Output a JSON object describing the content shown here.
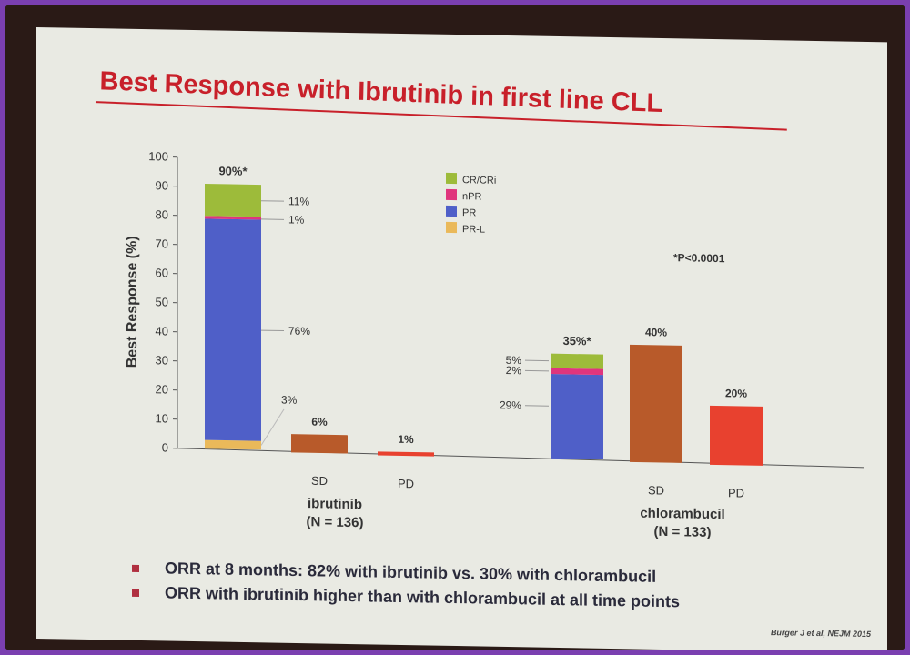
{
  "slide": {
    "title": "Best Response with Ibrutinib in first line CLL",
    "bullets": [
      "ORR at 8 months: 82% with ibrutinib vs. 30% with chlorambucil",
      "ORR with ibrutinib higher than with chlorambucil at all time points"
    ],
    "citation": "Burger J et al, NEJM 2015"
  },
  "chart_data": {
    "type": "bar",
    "title": "",
    "ylabel": "Best Response (%)",
    "ylim": [
      0,
      100
    ],
    "yticks": [
      0,
      10,
      20,
      30,
      40,
      50,
      60,
      70,
      80,
      90,
      100
    ],
    "annotation": "*P<0.0001",
    "legend": {
      "placement": "top-center",
      "entries": [
        {
          "name": "CR/CRi",
          "color": "#9dbb3a"
        },
        {
          "name": "nPR",
          "color": "#e0357d"
        },
        {
          "name": "PR",
          "color": "#4f5fc8"
        },
        {
          "name": "PR-L",
          "color": "#eab95a"
        }
      ]
    },
    "groups": [
      {
        "name": "ibrutinib",
        "n": "(N = 136)",
        "bars": [
          {
            "category": "",
            "label": "90%*",
            "stack": [
              {
                "series": "PR-L",
                "value": 3,
                "label": "3%"
              },
              {
                "series": "PR",
                "value": 76,
                "label": "76%"
              },
              {
                "series": "nPR",
                "value": 1,
                "label": "1%"
              },
              {
                "series": "CR/CRi",
                "value": 11,
                "label": "11%"
              }
            ]
          },
          {
            "category": "SD",
            "value": 6,
            "label": "6%",
            "color": "#b85a2a"
          },
          {
            "category": "PD",
            "value": 1,
            "label": "1%",
            "color": "#e8412f"
          }
        ]
      },
      {
        "name": "chlorambucil",
        "n": "(N = 133)",
        "bars": [
          {
            "category": "",
            "label": "35%*",
            "stack": [
              {
                "series": "PR",
                "value": 29,
                "label": "29%"
              },
              {
                "series": "nPR",
                "value": 2,
                "label": "2%"
              },
              {
                "series": "CR/CRi",
                "value": 5,
                "label": "5%"
              }
            ]
          },
          {
            "category": "SD",
            "value": 40,
            "label": "40%",
            "color": "#b85a2a"
          },
          {
            "category": "PD",
            "value": 20,
            "label": "20%",
            "color": "#e8412f"
          }
        ]
      }
    ]
  }
}
